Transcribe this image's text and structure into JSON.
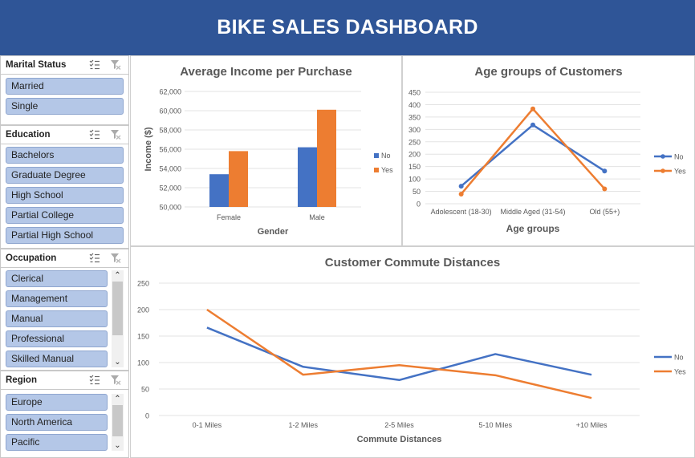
{
  "header": {
    "title": "BIKE SALES DASHBOARD"
  },
  "colors": {
    "banner": "#2f5597",
    "no": "#4472c4",
    "yes": "#ed7d31",
    "slicer_item": "#b4c7e7"
  },
  "slicers": [
    {
      "title": "Marital Status",
      "items": [
        "Married",
        "Single"
      ],
      "scrollbar": false
    },
    {
      "title": "Education",
      "items": [
        "Bachelors",
        "Graduate Degree",
        "High School",
        "Partial College",
        "Partial High School"
      ],
      "scrollbar": false
    },
    {
      "title": "Occupation",
      "items": [
        "Clerical",
        "Management",
        "Manual",
        "Professional",
        "Skilled Manual"
      ],
      "scrollbar": true
    },
    {
      "title": "Region",
      "items": [
        "Europe",
        "North America",
        "Pacific"
      ],
      "scrollbar": true
    }
  ],
  "icons": {
    "multi_select": "multi-select-icon",
    "clear_filter": "clear-filter-icon",
    "scroll_up": "scroll-up-icon",
    "scroll_down": "scroll-down-icon"
  },
  "chart_data": [
    {
      "type": "bar",
      "title": "Average Income per Purchase",
      "xlabel": "Gender",
      "ylabel": "Income ($)",
      "categories": [
        "Female",
        "Male"
      ],
      "series": [
        {
          "name": "No",
          "values": [
            53400,
            56200
          ]
        },
        {
          "name": "Yes",
          "values": [
            55800,
            60100
          ]
        }
      ],
      "ylim": [
        50000,
        62000
      ],
      "yticks": [
        "50,000",
        "52,000",
        "54,000",
        "56,000",
        "58,000",
        "60,000",
        "62,000"
      ],
      "legend": "right",
      "grid": true
    },
    {
      "type": "line",
      "title": "Age groups of Customers",
      "xlabel": "Age groups",
      "ylabel": "",
      "categories": [
        "Adolescent (18-30)",
        "Middle Aged (31-54)",
        "Old (55+)"
      ],
      "series": [
        {
          "name": "No",
          "values": [
            71,
            318,
            132
          ]
        },
        {
          "name": "Yes",
          "values": [
            39,
            383,
            60
          ]
        }
      ],
      "ylim": [
        0,
        450
      ],
      "yticks": [
        "0",
        "50",
        "100",
        "150",
        "200",
        "250",
        "300",
        "350",
        "400",
        "450"
      ],
      "legend": "right",
      "grid": true
    },
    {
      "type": "line",
      "title": "Customer Commute Distances",
      "xlabel": "Commute Distances",
      "ylabel": "",
      "categories": [
        "0-1 Miles",
        "1-2 Miles",
        "2-5 Miles",
        "5-10 Miles",
        "+10 Miles"
      ],
      "series": [
        {
          "name": "No",
          "values": [
            166,
            92,
            67,
            116,
            77
          ]
        },
        {
          "name": "Yes",
          "values": [
            200,
            77,
            95,
            76,
            33
          ]
        }
      ],
      "ylim": [
        0,
        250
      ],
      "yticks": [
        "0",
        "50",
        "100",
        "150",
        "200",
        "250"
      ],
      "legend": "right",
      "grid": true
    }
  ]
}
